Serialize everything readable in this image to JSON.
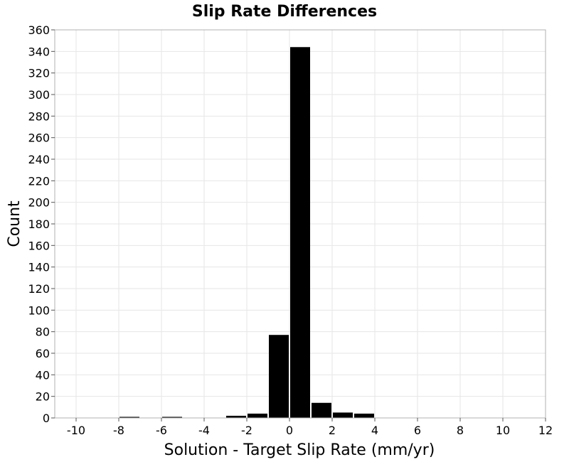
{
  "chart_data": {
    "type": "bar",
    "title": "Slip Rate Differences",
    "xlabel": "Solution - Target Slip Rate (mm/yr)",
    "ylabel": "Count",
    "xlim": [
      -11,
      12
    ],
    "ylim": [
      0,
      360
    ],
    "xticks": [
      -10,
      -8,
      -6,
      -4,
      -2,
      0,
      2,
      4,
      6,
      8,
      10,
      12
    ],
    "yticks": [
      0,
      20,
      40,
      60,
      80,
      100,
      120,
      140,
      160,
      180,
      200,
      220,
      240,
      260,
      280,
      300,
      320,
      340,
      360
    ],
    "bin_width": 1,
    "bar_color": "#000000",
    "grid": true,
    "bins": [
      {
        "center": -7.5,
        "count": 1
      },
      {
        "center": -5.5,
        "count": 1
      },
      {
        "center": -2.5,
        "count": 2
      },
      {
        "center": -1.5,
        "count": 4
      },
      {
        "center": -0.5,
        "count": 77
      },
      {
        "center": 0.5,
        "count": 344
      },
      {
        "center": 1.5,
        "count": 14
      },
      {
        "center": 2.5,
        "count": 5
      },
      {
        "center": 3.5,
        "count": 4
      }
    ]
  }
}
